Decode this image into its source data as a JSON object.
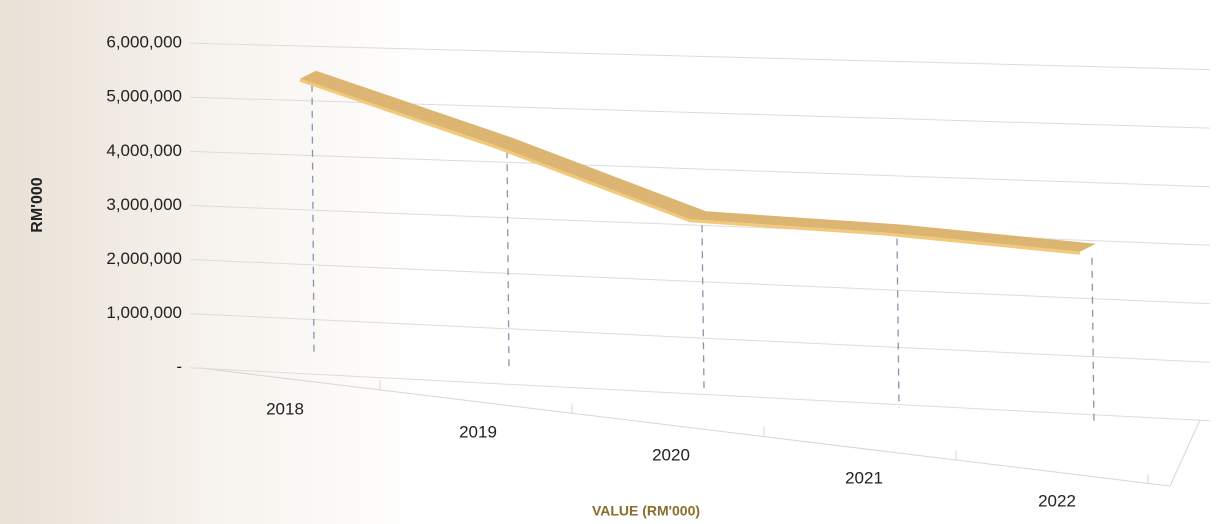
{
  "chart_data": {
    "type": "line3d",
    "y_axis_label": "RM'000",
    "x_axis_label": "VALUE (RM'000)",
    "categories": [
      "2018",
      "2019",
      "2020",
      "2021",
      "2022"
    ],
    "values": [
      5400000,
      4300000,
      3100000,
      3000000,
      2800000
    ],
    "color": "#d9ad63",
    "ylim": [
      0,
      6000000
    ],
    "yticks": [
      {
        "value": 0,
        "label": "-"
      },
      {
        "value": 1000000,
        "label": "1,000,000"
      },
      {
        "value": 2000000,
        "label": "2,000,000"
      },
      {
        "value": 3000000,
        "label": "3,000,000"
      },
      {
        "value": 4000000,
        "label": "4,000,000"
      },
      {
        "value": 5000000,
        "label": "5,000,000"
      },
      {
        "value": 6000000,
        "label": "6,000,000"
      }
    ],
    "grid": true
  }
}
